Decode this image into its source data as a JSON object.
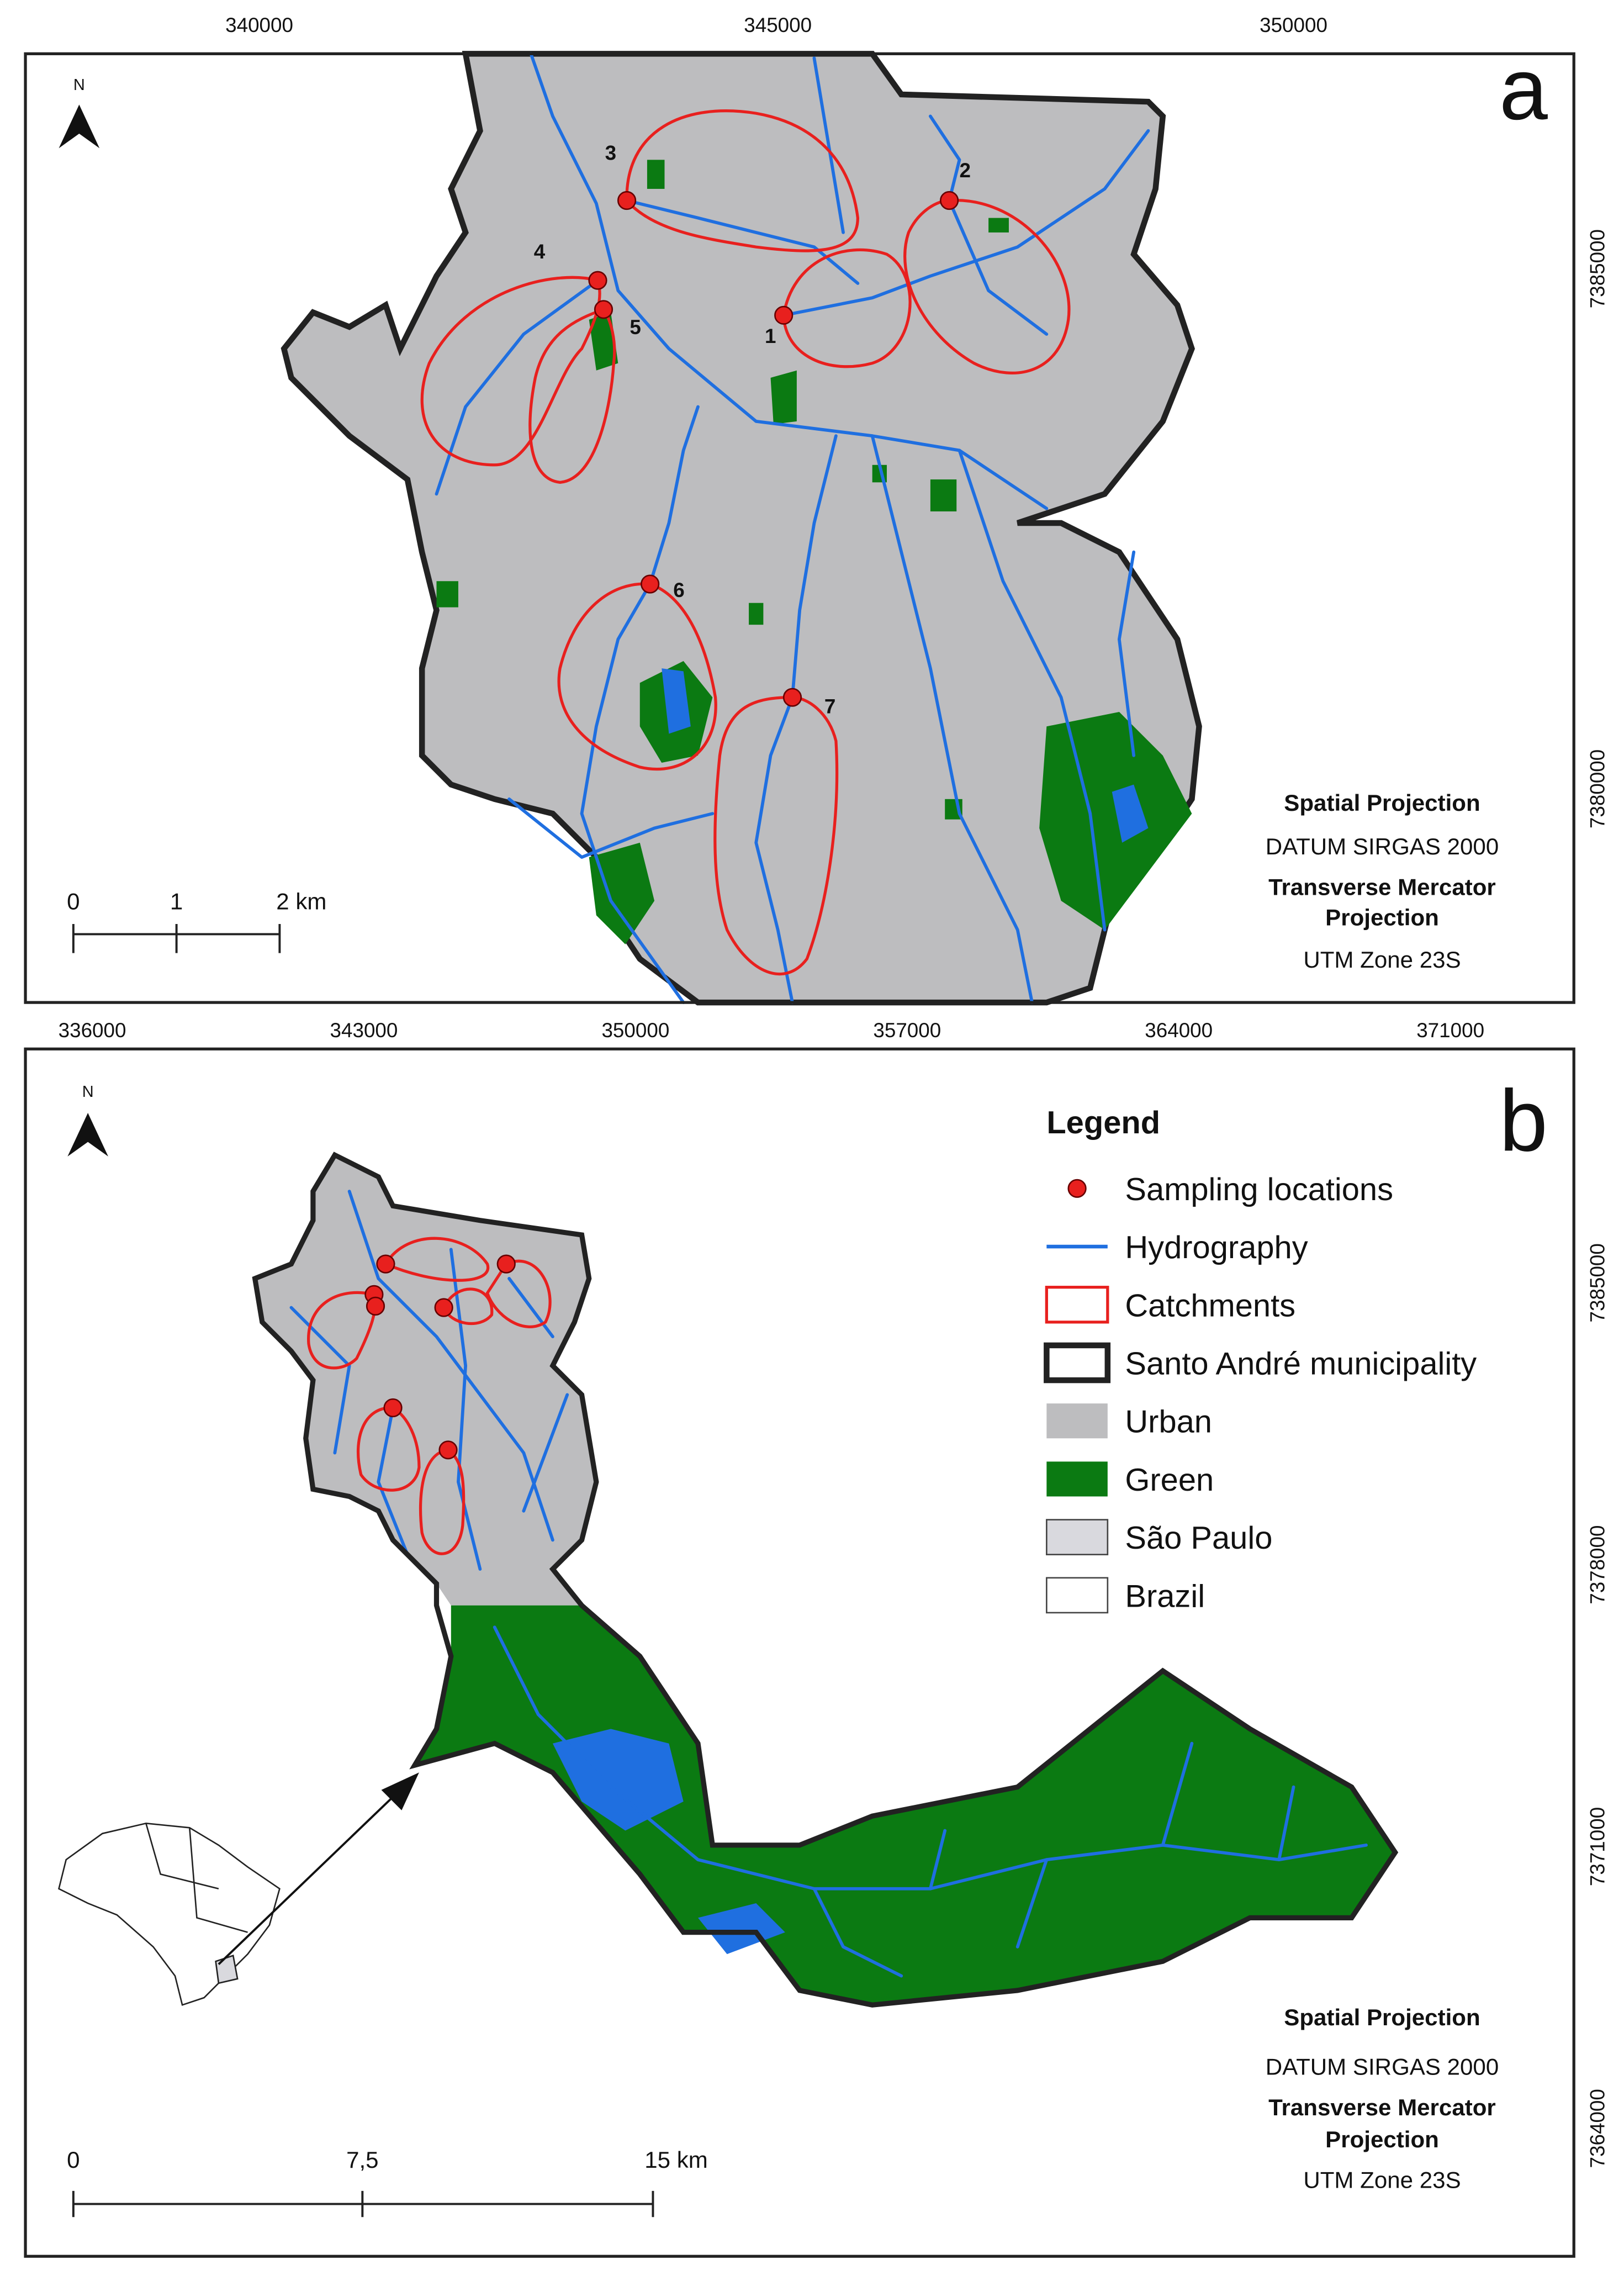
{
  "panel_a": {
    "label": "a",
    "north": "N",
    "top_coords": [
      340000,
      345000,
      350000
    ],
    "right_coords": [
      7385000,
      7380000
    ],
    "sites": [
      "1",
      "2",
      "3",
      "4",
      "5",
      "6",
      "7"
    ],
    "scale": [
      "0",
      "1",
      "2 km"
    ],
    "projection": [
      "Spatial Projection",
      "DATUM SIRGAS 2000",
      "Transverse Mercator",
      "Projection",
      "UTM Zone 23S"
    ]
  },
  "panel_b": {
    "label": "b",
    "north": "N",
    "top_coords": [
      336000,
      343000,
      350000,
      357000,
      364000,
      371000
    ],
    "right_coords": [
      7385000,
      7378000,
      7371000,
      7364000
    ],
    "legend": {
      "title": "Legend",
      "items": [
        "Sampling locations",
        "Hydrography",
        "Catchments",
        "Santo André municipality",
        "Urban",
        "Green",
        "São Paulo",
        "Brazil"
      ]
    },
    "scale": [
      "0",
      "7,5",
      "15 km"
    ],
    "projection": [
      "Spatial Projection",
      "DATUM SIRGAS 2000",
      "Transverse Mercator",
      "Projection",
      "UTM Zone 23S"
    ]
  }
}
